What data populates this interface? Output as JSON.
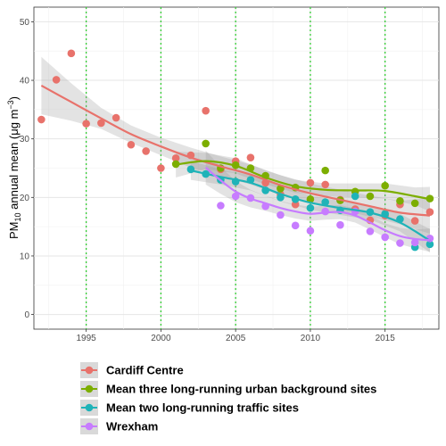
{
  "chart_data": {
    "type": "scatter",
    "title": "",
    "xlabel": "",
    "ylabel": {
      "base": "PM",
      "sub": "10",
      "mid": " annual mean (μg m",
      "sup": "−3",
      "end": ")"
    },
    "xlim": [
      1991.5,
      2018.6
    ],
    "ylim": [
      -2.5,
      52.5
    ],
    "x_ticks": [
      1995,
      2000,
      2005,
      2010,
      2015
    ],
    "y_ticks": [
      0,
      10,
      20,
      30,
      40,
      50
    ],
    "grid": true,
    "vertical_reference_lines": [
      1995,
      2000,
      2005,
      2010,
      2015
    ],
    "reference_line_color": "#33cc33",
    "legend_position": "bottom",
    "series": [
      {
        "name": "Cardiff Centre",
        "color": "#e8726b",
        "points": [
          [
            1992,
            33.3
          ],
          [
            1993,
            40.1
          ],
          [
            1994,
            44.6
          ],
          [
            1995,
            32.6
          ],
          [
            1996,
            32.7
          ],
          [
            1997,
            33.6
          ],
          [
            1998,
            29.0
          ],
          [
            1999,
            27.9
          ],
          [
            2000,
            25.0
          ],
          [
            2001,
            26.7
          ],
          [
            2002,
            27.2
          ],
          [
            2003,
            34.8
          ],
          [
            2004,
            24.8
          ],
          [
            2005,
            26.2
          ],
          [
            2006,
            26.8
          ],
          [
            2007,
            22.5
          ],
          [
            2008,
            20.5
          ],
          [
            2009,
            18.8
          ],
          [
            2010,
            22.5
          ],
          [
            2011,
            22.2
          ],
          [
            2012,
            19.6
          ],
          [
            2013,
            18.0
          ],
          [
            2014,
            16.1
          ],
          [
            2015,
            16.9
          ],
          [
            2016,
            18.8
          ],
          [
            2017,
            16.0
          ],
          [
            2018,
            17.5
          ]
        ],
        "smooth": [
          [
            1992,
            39.1
          ],
          [
            1994,
            36.3
          ],
          [
            1996,
            33.5
          ],
          [
            1998,
            30.8
          ],
          [
            2000,
            28.7
          ],
          [
            2002,
            26.8
          ],
          [
            2004,
            25.3
          ],
          [
            2006,
            23.9
          ],
          [
            2008,
            22.1
          ],
          [
            2010,
            20.7
          ],
          [
            2012,
            19.6
          ],
          [
            2014,
            18.5
          ],
          [
            2016,
            17.4
          ],
          [
            2018,
            16.9
          ]
        ],
        "band_upper": [
          [
            1992,
            44.0
          ],
          [
            1994,
            39.5
          ],
          [
            1996,
            35.3
          ],
          [
            1998,
            32.3
          ],
          [
            2000,
            30.2
          ],
          [
            2002,
            28.5
          ],
          [
            2004,
            27.0
          ],
          [
            2006,
            25.6
          ],
          [
            2008,
            23.8
          ],
          [
            2010,
            22.4
          ],
          [
            2012,
            21.3
          ],
          [
            2014,
            20.3
          ],
          [
            2016,
            19.4
          ],
          [
            2018,
            20.0
          ]
        ],
        "band_lower": [
          [
            1992,
            34.2
          ],
          [
            1994,
            33.1
          ],
          [
            1996,
            31.7
          ],
          [
            1998,
            29.3
          ],
          [
            2000,
            27.2
          ],
          [
            2002,
            25.1
          ],
          [
            2004,
            23.6
          ],
          [
            2006,
            22.2
          ],
          [
            2008,
            20.4
          ],
          [
            2010,
            19.0
          ],
          [
            2012,
            17.9
          ],
          [
            2014,
            16.7
          ],
          [
            2016,
            15.4
          ],
          [
            2018,
            13.8
          ]
        ]
      },
      {
        "name": "Mean three long-running urban background sites",
        "color": "#7cae00",
        "points": [
          [
            2001,
            25.7
          ],
          [
            2003,
            29.2
          ],
          [
            2004,
            25.0
          ],
          [
            2005,
            25.5
          ],
          [
            2006,
            25.0
          ],
          [
            2007,
            23.7
          ],
          [
            2008,
            21.5
          ],
          [
            2009,
            21.7
          ],
          [
            2010,
            19.7
          ],
          [
            2011,
            24.6
          ],
          [
            2012,
            19.5
          ],
          [
            2013,
            21.0
          ],
          [
            2014,
            20.2
          ],
          [
            2015,
            22.0
          ],
          [
            2016,
            19.4
          ],
          [
            2017,
            19.0
          ],
          [
            2018,
            19.8
          ]
        ],
        "smooth": [
          [
            2001,
            25.6
          ],
          [
            2003,
            26.2
          ],
          [
            2005,
            25.4
          ],
          [
            2007,
            23.4
          ],
          [
            2009,
            21.9
          ],
          [
            2011,
            21.3
          ],
          [
            2013,
            21.2
          ],
          [
            2015,
            21.1
          ],
          [
            2017,
            20.2
          ],
          [
            2018,
            19.7
          ]
        ],
        "band_upper": [
          [
            2001,
            27.8
          ],
          [
            2003,
            27.6
          ],
          [
            2005,
            26.7
          ],
          [
            2007,
            24.6
          ],
          [
            2009,
            23.0
          ],
          [
            2011,
            22.4
          ],
          [
            2013,
            22.4
          ],
          [
            2015,
            22.4
          ],
          [
            2017,
            21.7
          ],
          [
            2018,
            21.8
          ]
        ],
        "band_lower": [
          [
            2001,
            23.4
          ],
          [
            2003,
            24.8
          ],
          [
            2005,
            24.1
          ],
          [
            2007,
            22.2
          ],
          [
            2009,
            20.8
          ],
          [
            2011,
            20.2
          ],
          [
            2013,
            20.0
          ],
          [
            2015,
            19.8
          ],
          [
            2017,
            18.7
          ],
          [
            2018,
            17.6
          ]
        ]
      },
      {
        "name": "Mean two long-running traffic sites",
        "color": "#1fb3b8",
        "points": [
          [
            2002,
            24.8
          ],
          [
            2003,
            24.0
          ],
          [
            2004,
            23.0
          ],
          [
            2005,
            22.7
          ],
          [
            2006,
            23.0
          ],
          [
            2007,
            21.2
          ],
          [
            2008,
            20.0
          ],
          [
            2009,
            19.7
          ],
          [
            2010,
            18.2
          ],
          [
            2011,
            19.2
          ],
          [
            2012,
            17.8
          ],
          [
            2013,
            20.2
          ],
          [
            2014,
            17.5
          ],
          [
            2015,
            17.2
          ],
          [
            2016,
            16.3
          ],
          [
            2017,
            11.5
          ],
          [
            2018,
            12.0
          ]
        ],
        "smooth": [
          [
            2002,
            24.6
          ],
          [
            2004,
            23.5
          ],
          [
            2006,
            22.5
          ],
          [
            2008,
            20.6
          ],
          [
            2010,
            19.1
          ],
          [
            2012,
            18.2
          ],
          [
            2014,
            17.4
          ],
          [
            2016,
            15.7
          ],
          [
            2018,
            12.6
          ]
        ],
        "band_upper": [
          [
            2002,
            26.2
          ],
          [
            2004,
            24.8
          ],
          [
            2006,
            23.8
          ],
          [
            2008,
            21.9
          ],
          [
            2010,
            20.3
          ],
          [
            2012,
            19.4
          ],
          [
            2014,
            18.6
          ],
          [
            2016,
            17.2
          ],
          [
            2018,
            14.6
          ]
        ],
        "band_lower": [
          [
            2002,
            23.0
          ],
          [
            2004,
            22.2
          ],
          [
            2006,
            21.2
          ],
          [
            2008,
            19.3
          ],
          [
            2010,
            17.9
          ],
          [
            2012,
            17.0
          ],
          [
            2014,
            16.2
          ],
          [
            2016,
            14.2
          ],
          [
            2018,
            10.6
          ]
        ]
      },
      {
        "name": "Wrexham",
        "color": "#c77cff",
        "points": [
          [
            2004,
            18.6
          ],
          [
            2005,
            20.2
          ],
          [
            2006,
            19.9
          ],
          [
            2007,
            18.5
          ],
          [
            2008,
            17.0
          ],
          [
            2009,
            15.2
          ],
          [
            2010,
            14.3
          ],
          [
            2011,
            17.6
          ],
          [
            2012,
            15.3
          ],
          [
            2013,
            17.6
          ],
          [
            2014,
            14.2
          ],
          [
            2015,
            13.2
          ],
          [
            2016,
            12.2
          ],
          [
            2017,
            12.3
          ],
          [
            2018,
            13.0
          ]
        ],
        "smooth": [
          [
            2003,
            25.1
          ],
          [
            2004,
            22.9
          ],
          [
            2005,
            21.0
          ],
          [
            2006,
            19.8
          ],
          [
            2007,
            19.0
          ],
          [
            2008,
            18.2
          ],
          [
            2009,
            17.6
          ],
          [
            2010,
            17.2
          ],
          [
            2011,
            17.4
          ],
          [
            2012,
            17.5
          ],
          [
            2013,
            16.9
          ],
          [
            2014,
            15.7
          ],
          [
            2015,
            14.4
          ],
          [
            2016,
            13.4
          ],
          [
            2017,
            12.9
          ],
          [
            2018,
            12.7
          ]
        ],
        "band_upper": [
          [
            2003,
            28.0
          ],
          [
            2004,
            25.2
          ],
          [
            2005,
            22.8
          ],
          [
            2006,
            21.3
          ],
          [
            2007,
            20.3
          ],
          [
            2008,
            19.4
          ],
          [
            2009,
            18.8
          ],
          [
            2010,
            18.4
          ],
          [
            2011,
            18.6
          ],
          [
            2012,
            18.7
          ],
          [
            2013,
            18.1
          ],
          [
            2014,
            16.9
          ],
          [
            2015,
            15.6
          ],
          [
            2016,
            14.8
          ],
          [
            2017,
            14.5
          ],
          [
            2018,
            14.7
          ]
        ],
        "band_lower": [
          [
            2003,
            22.2
          ],
          [
            2004,
            20.6
          ],
          [
            2005,
            19.2
          ],
          [
            2006,
            18.3
          ],
          [
            2007,
            17.7
          ],
          [
            2008,
            17.0
          ],
          [
            2009,
            16.4
          ],
          [
            2010,
            16.0
          ],
          [
            2011,
            16.2
          ],
          [
            2012,
            16.3
          ],
          [
            2013,
            15.7
          ],
          [
            2014,
            14.5
          ],
          [
            2015,
            13.2
          ],
          [
            2016,
            12.0
          ],
          [
            2017,
            11.3
          ],
          [
            2018,
            10.7
          ]
        ]
      }
    ]
  }
}
